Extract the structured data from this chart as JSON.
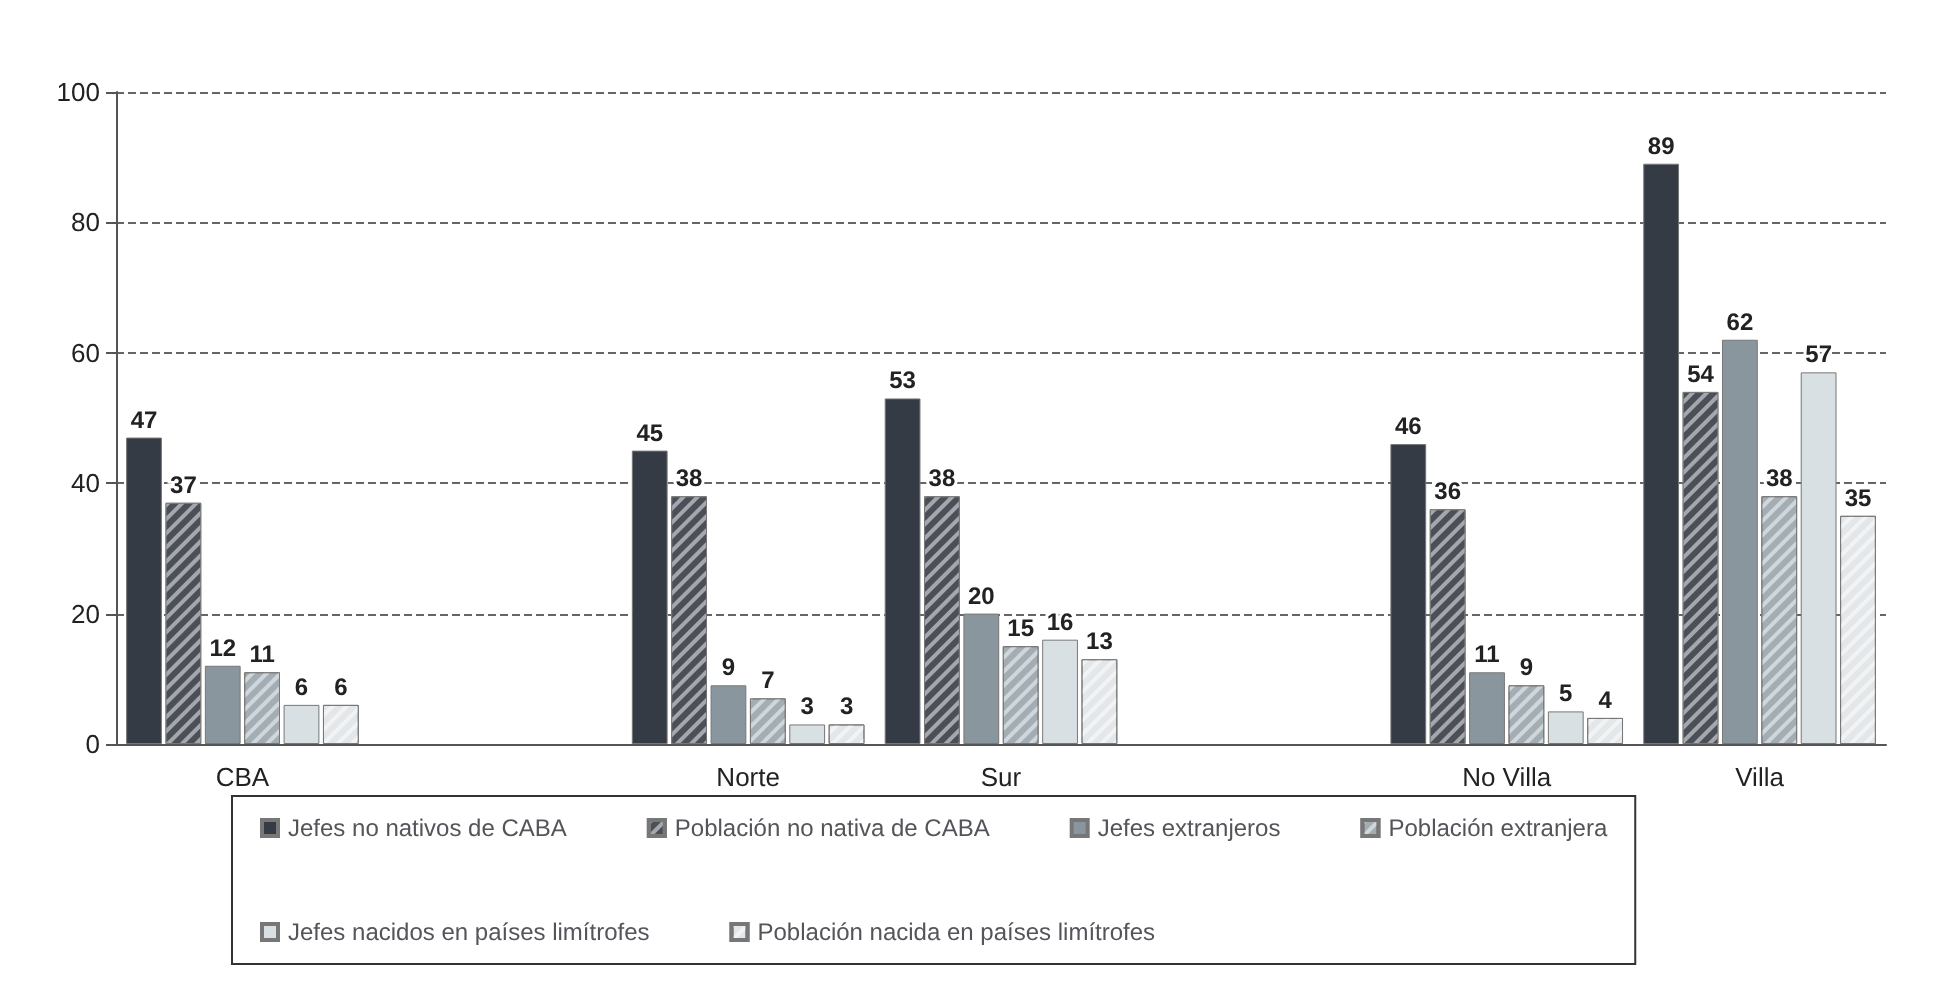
{
  "chart_data": {
    "type": "bar",
    "categories": [
      "CBA",
      null,
      "Norte",
      "Sur",
      null,
      "No Villa",
      "Villa"
    ],
    "series": [
      {
        "name": "Jefes no nativos de CABA",
        "color": "#353b45",
        "values": [
          47,
          null,
          45,
          53,
          null,
          46,
          89
        ]
      },
      {
        "name": "Población no nativa de CABA",
        "color": "#4a4f58",
        "values": [
          37,
          null,
          38,
          38,
          null,
          36,
          54
        ]
      },
      {
        "name": "Jefes extranjeros",
        "color": "#8a969e",
        "values": [
          12,
          null,
          9,
          20,
          null,
          11,
          62
        ]
      },
      {
        "name": "Población extranjera",
        "color": "#a3adb4",
        "values": [
          11,
          null,
          7,
          15,
          null,
          9,
          38
        ]
      },
      {
        "name": "Jefes nacidos en países limítrofes",
        "color": "#d9e0e4",
        "values": [
          6,
          null,
          3,
          16,
          null,
          5,
          57
        ]
      },
      {
        "name": "Población nacida en países limítrofes",
        "color": "#e4e7e9",
        "values": [
          6,
          null,
          3,
          13,
          null,
          4,
          35
        ]
      }
    ],
    "ylim": [
      0,
      100
    ],
    "yticks": [
      0,
      20,
      40,
      60,
      80,
      100
    ],
    "grid": "y",
    "legend": "bottom",
    "data_labels": true
  }
}
